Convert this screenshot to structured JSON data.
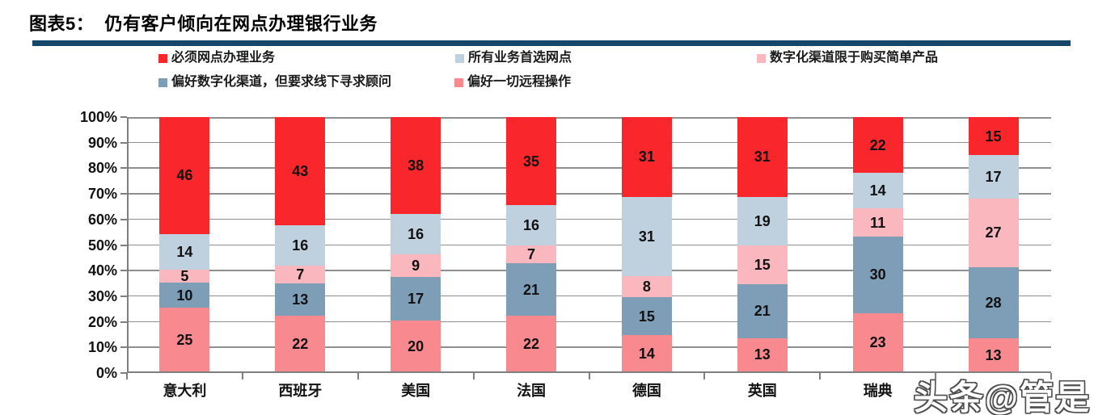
{
  "header": {
    "title": "图表5：  仍有客户倾向在网点办理银行业务"
  },
  "watermark": {
    "text": "头条@管是"
  },
  "colors": {
    "title_rule": "#14476B",
    "axis": "#7F7F7F",
    "grid": "#8F8F8F",
    "label": "#111111"
  },
  "chart_data": {
    "type": "bar",
    "stacked": true,
    "stack_order": "bottom-to-top",
    "unit": "%",
    "title": "仍有客户倾向在网点办理银行业务",
    "categories": [
      "意大利",
      "西班牙",
      "美国",
      "法国",
      "德国",
      "英国",
      "瑞典",
      ""
    ],
    "series": [
      {
        "name": "偏好一切远程操作",
        "color": "#F8898E",
        "values": [
          25,
          22,
          20,
          22,
          14,
          13,
          23,
          13
        ]
      },
      {
        "name": "偏好数字化渠道，但要求线下寻求顾问",
        "color": "#7E9DB7",
        "values": [
          10,
          13,
          17,
          21,
          15,
          21,
          30,
          28
        ]
      },
      {
        "name": "数字化渠道限于购买简单产品",
        "color": "#FAB8BE",
        "values": [
          5,
          7,
          9,
          7,
          8,
          15,
          11,
          27
        ]
      },
      {
        "name": "所有业务首选网点",
        "color": "#BFD1DF",
        "values": [
          14,
          16,
          16,
          16,
          31,
          19,
          14,
          17
        ]
      },
      {
        "name": "必须网点办理业务",
        "color": "#F9262C",
        "values": [
          46,
          43,
          38,
          35,
          31,
          31,
          22,
          15
        ]
      }
    ],
    "legend": [
      {
        "label": "必须网点办理业务",
        "color": "#F9262C"
      },
      {
        "label": "所有业务首选网点",
        "color": "#BFD1DF"
      },
      {
        "label": "数字化渠道限于购买简单产品",
        "color": "#FAB8BE"
      },
      {
        "label": "偏好数字化渠道，但要求线下寻求顾问",
        "color": "#7E9DB7"
      },
      {
        "label": "偏好一切远程操作",
        "color": "#F8898E"
      }
    ],
    "legend_position": "top",
    "value_labels": true,
    "y_axis": {
      "min": 0,
      "max": 100,
      "ticks": [
        "0%",
        "10%",
        "20%",
        "30%",
        "40%",
        "50%",
        "60%",
        "70%",
        "80%",
        "90%",
        "100%"
      ],
      "grid": true
    }
  }
}
